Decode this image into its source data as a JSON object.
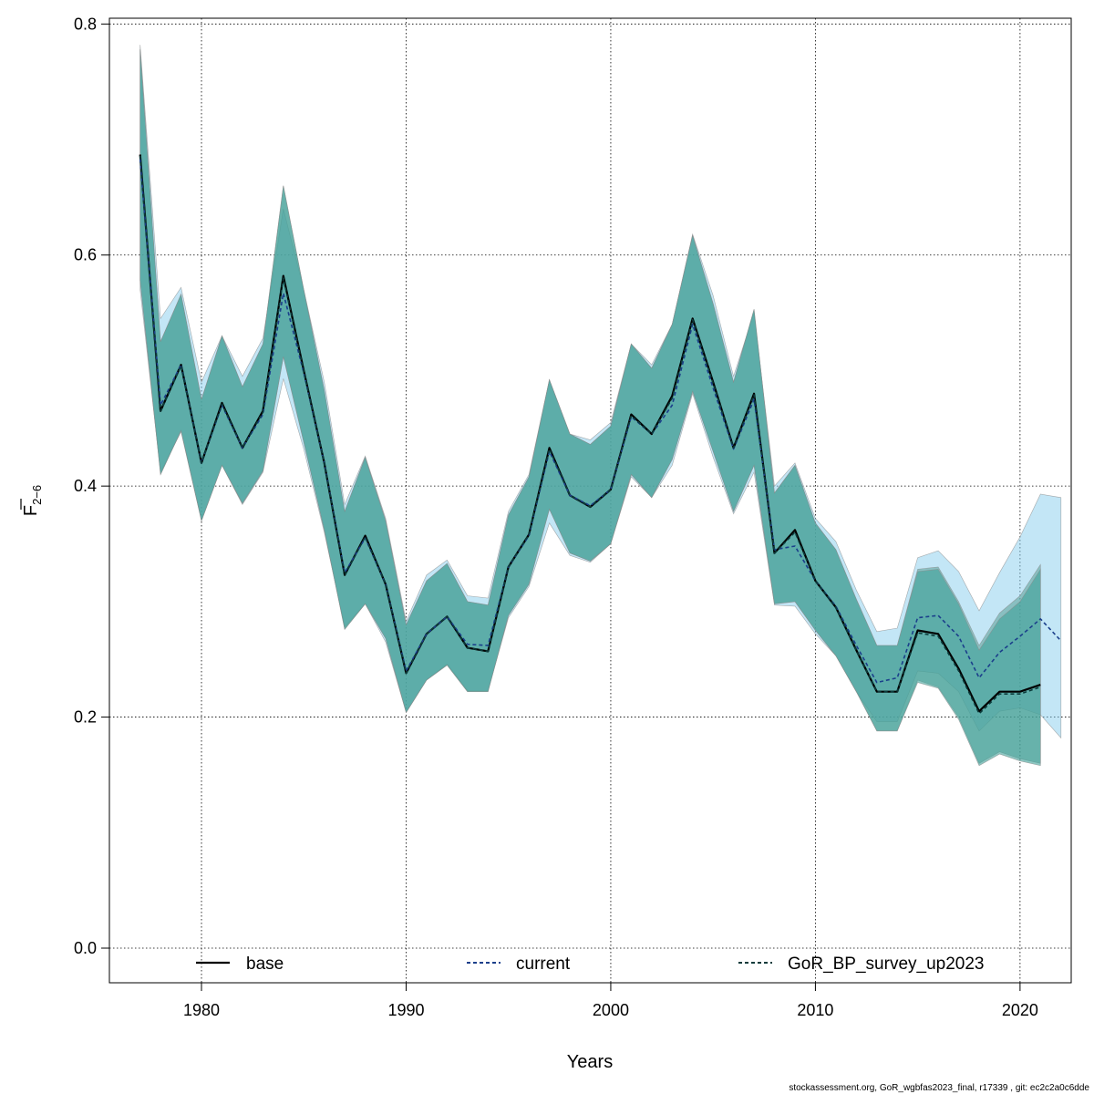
{
  "chart_data": {
    "type": "line",
    "xlabel": "Years",
    "ylabel_main": "F",
    "ylabel_sub": "2−6",
    "xlim": [
      1975.5,
      2022.5
    ],
    "ylim": [
      -0.03,
      0.805
    ],
    "xticks": [
      1980,
      1990,
      2000,
      2010,
      2020
    ],
    "yticks": [
      0.0,
      0.2,
      0.4,
      0.6,
      0.8
    ],
    "ytick_labels": [
      "0.0",
      "0.2",
      "0.4",
      "0.6",
      "0.8"
    ],
    "grid": true,
    "legend_placement": "bottom",
    "colors": {
      "band_current": "#87cdee",
      "band_base": "#5a9e95",
      "band_gor": "#3fa29a",
      "line": "#000000",
      "line_current": "#1b3f8b",
      "line_gor": "#0b3b3b"
    },
    "series": [
      {
        "name": "base",
        "line_style": "solid",
        "x": [
          1977,
          1978,
          1979,
          1980,
          1981,
          1982,
          1983,
          1984,
          1985,
          1986,
          1987,
          1988,
          1989,
          1990,
          1991,
          1992,
          1993,
          1994,
          1995,
          1996,
          1997,
          1998,
          1999,
          2000,
          2001,
          2002,
          2003,
          2004,
          2005,
          2006,
          2007,
          2008,
          2009,
          2010,
          2011,
          2012,
          2013,
          2014,
          2015,
          2016,
          2017,
          2018,
          2019,
          2020,
          2021
        ],
        "y": [
          0.687,
          0.465,
          0.505,
          0.42,
          0.472,
          0.433,
          0.465,
          0.582,
          0.5,
          0.42,
          0.323,
          0.357,
          0.315,
          0.238,
          0.272,
          0.287,
          0.26,
          0.257,
          0.33,
          0.358,
          0.433,
          0.392,
          0.382,
          0.397,
          0.462,
          0.445,
          0.478,
          0.545,
          0.49,
          0.433,
          0.48,
          0.342,
          0.362,
          0.318,
          0.295,
          0.258,
          0.222,
          0.222,
          0.275,
          0.272,
          0.242,
          0.205,
          0.222,
          0.222,
          0.228
        ],
        "lower": [
          0.578,
          0.41,
          0.448,
          0.37,
          0.418,
          0.385,
          0.413,
          0.512,
          0.438,
          0.362,
          0.276,
          0.298,
          0.268,
          0.204,
          0.232,
          0.245,
          0.222,
          0.222,
          0.288,
          0.315,
          0.38,
          0.342,
          0.335,
          0.35,
          0.41,
          0.39,
          0.423,
          0.482,
          0.43,
          0.378,
          0.418,
          0.298,
          0.3,
          0.275,
          0.253,
          0.222,
          0.188,
          0.188,
          0.232,
          0.226,
          0.2,
          0.16,
          0.17,
          0.164,
          0.16
        ],
        "upper": [
          0.778,
          0.525,
          0.566,
          0.475,
          0.53,
          0.486,
          0.523,
          0.66,
          0.57,
          0.483,
          0.378,
          0.425,
          0.37,
          0.28,
          0.318,
          0.333,
          0.3,
          0.297,
          0.375,
          0.408,
          0.492,
          0.445,
          0.436,
          0.452,
          0.523,
          0.502,
          0.54,
          0.617,
          0.558,
          0.49,
          0.553,
          0.394,
          0.418,
          0.368,
          0.345,
          0.302,
          0.262,
          0.262,
          0.328,
          0.33,
          0.3,
          0.262,
          0.29,
          0.305,
          0.332
        ]
      },
      {
        "name": "current",
        "line_style": "dashed",
        "x": [
          1977,
          1978,
          1979,
          1980,
          1981,
          1982,
          1983,
          1984,
          1985,
          1986,
          1987,
          1988,
          1989,
          1990,
          1991,
          1992,
          1993,
          1994,
          1995,
          1996,
          1997,
          1998,
          1999,
          2000,
          2001,
          2002,
          2003,
          2004,
          2005,
          2006,
          2007,
          2008,
          2009,
          2010,
          2011,
          2012,
          2013,
          2014,
          2015,
          2016,
          2017,
          2018,
          2019,
          2020,
          2021,
          2022
        ],
        "y": [
          0.683,
          0.47,
          0.505,
          0.42,
          0.47,
          0.433,
          0.462,
          0.567,
          0.498,
          0.42,
          0.325,
          0.355,
          0.315,
          0.24,
          0.272,
          0.287,
          0.263,
          0.262,
          0.33,
          0.357,
          0.43,
          0.392,
          0.383,
          0.397,
          0.46,
          0.445,
          0.47,
          0.54,
          0.485,
          0.432,
          0.475,
          0.345,
          0.348,
          0.318,
          0.296,
          0.262,
          0.23,
          0.234,
          0.286,
          0.288,
          0.27,
          0.234,
          0.256,
          0.27,
          0.285,
          0.266
        ],
        "lower": [
          0.57,
          0.412,
          0.447,
          0.37,
          0.418,
          0.384,
          0.412,
          0.493,
          0.432,
          0.36,
          0.278,
          0.298,
          0.265,
          0.204,
          0.232,
          0.246,
          0.223,
          0.223,
          0.286,
          0.313,
          0.368,
          0.34,
          0.334,
          0.35,
          0.408,
          0.39,
          0.418,
          0.48,
          0.425,
          0.376,
          0.412,
          0.297,
          0.296,
          0.272,
          0.253,
          0.222,
          0.196,
          0.196,
          0.24,
          0.238,
          0.222,
          0.188,
          0.205,
          0.208,
          0.202,
          0.182
        ],
        "upper": [
          0.782,
          0.545,
          0.572,
          0.49,
          0.53,
          0.495,
          0.528,
          0.64,
          0.57,
          0.49,
          0.384,
          0.426,
          0.372,
          0.283,
          0.323,
          0.336,
          0.305,
          0.303,
          0.378,
          0.41,
          0.492,
          0.445,
          0.44,
          0.455,
          0.523,
          0.505,
          0.54,
          0.618,
          0.565,
          0.495,
          0.55,
          0.4,
          0.42,
          0.372,
          0.352,
          0.31,
          0.274,
          0.277,
          0.338,
          0.344,
          0.326,
          0.292,
          0.325,
          0.356,
          0.393,
          0.39
        ]
      },
      {
        "name": "GoR_BP_survey_up2023",
        "line_style": "dashed",
        "x": [
          1977,
          1978,
          1979,
          1980,
          1981,
          1982,
          1983,
          1984,
          1985,
          1986,
          1987,
          1988,
          1989,
          1990,
          1991,
          1992,
          1993,
          1994,
          1995,
          1996,
          1997,
          1998,
          1999,
          2000,
          2001,
          2002,
          2003,
          2004,
          2005,
          2006,
          2007,
          2008,
          2009,
          2010,
          2011,
          2012,
          2013,
          2014,
          2015,
          2016,
          2017,
          2018,
          2019,
          2020,
          2021
        ],
        "y": [
          0.686,
          0.465,
          0.504,
          0.42,
          0.471,
          0.433,
          0.464,
          0.58,
          0.499,
          0.42,
          0.323,
          0.356,
          0.315,
          0.238,
          0.272,
          0.287,
          0.26,
          0.257,
          0.33,
          0.358,
          0.432,
          0.392,
          0.382,
          0.397,
          0.461,
          0.445,
          0.476,
          0.544,
          0.489,
          0.433,
          0.479,
          0.342,
          0.36,
          0.318,
          0.295,
          0.258,
          0.222,
          0.222,
          0.273,
          0.27,
          0.24,
          0.203,
          0.22,
          0.22,
          0.226
        ],
        "lower": [
          0.578,
          0.41,
          0.448,
          0.37,
          0.418,
          0.385,
          0.413,
          0.512,
          0.438,
          0.362,
          0.276,
          0.298,
          0.268,
          0.204,
          0.232,
          0.245,
          0.222,
          0.222,
          0.288,
          0.315,
          0.38,
          0.342,
          0.335,
          0.35,
          0.41,
          0.39,
          0.423,
          0.482,
          0.43,
          0.378,
          0.418,
          0.298,
          0.3,
          0.275,
          0.253,
          0.222,
          0.188,
          0.188,
          0.23,
          0.225,
          0.198,
          0.158,
          0.168,
          0.162,
          0.158
        ],
        "upper": [
          0.778,
          0.525,
          0.566,
          0.475,
          0.53,
          0.486,
          0.523,
          0.66,
          0.57,
          0.483,
          0.378,
          0.425,
          0.37,
          0.28,
          0.318,
          0.333,
          0.3,
          0.297,
          0.375,
          0.408,
          0.492,
          0.445,
          0.436,
          0.452,
          0.523,
          0.502,
          0.54,
          0.617,
          0.558,
          0.49,
          0.553,
          0.394,
          0.418,
          0.368,
          0.345,
          0.302,
          0.262,
          0.262,
          0.326,
          0.328,
          0.298,
          0.258,
          0.285,
          0.3,
          0.328
        ]
      }
    ]
  },
  "footer": "stockassessment.org, GoR_wgbfas2023_final, r17339 , git: ec2c2a0c6dde"
}
